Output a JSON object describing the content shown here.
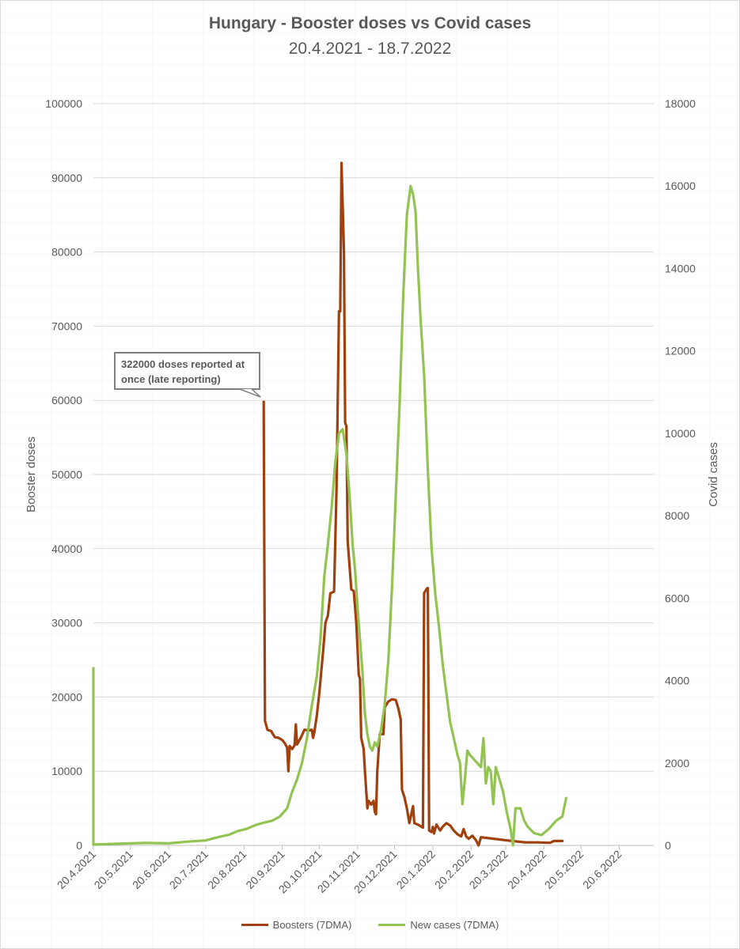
{
  "chart_data": {
    "type": "line",
    "title": "Hungary - Booster doses vs Covid cases",
    "subtitle": "20.4.2021 - 18.7.2022",
    "y_left_label": "Booster doses",
    "y_right_label": "Covid cases",
    "y_left_range": [
      0,
      100000
    ],
    "y_right_range": [
      0,
      18000
    ],
    "y_left_ticks": [
      "0",
      "10000",
      "20000",
      "30000",
      "40000",
      "50000",
      "60000",
      "70000",
      "80000",
      "90000",
      "100000"
    ],
    "y_right_ticks": [
      "0",
      "2000",
      "4000",
      "6000",
      "8000",
      "10000",
      "12000",
      "14000",
      "16000",
      "18000"
    ],
    "x_range": [
      "20.4.2021",
      "18.7.2022"
    ],
    "x_ticks": [
      "20.4.2021",
      "20.5.2021",
      "20.6.2021",
      "20.7.2021",
      "20.8.2021",
      "20.9.2021",
      "20.10.2021",
      "20.11.2021",
      "20.12.2021",
      "20.1.2022",
      "20.2.2022",
      "20.3.2022",
      "20.4.2022",
      "20.5.2022",
      "20.6.2022"
    ],
    "x_tick_dates": [
      "2021-04-20",
      "2021-05-20",
      "2021-06-20",
      "2021-07-20",
      "2021-08-20",
      "2021-09-20",
      "2021-10-20",
      "2021-11-20",
      "2021-12-20",
      "2022-01-20",
      "2022-02-20",
      "2022-03-20",
      "2022-04-20",
      "2022-05-20",
      "2022-06-20"
    ],
    "gridlines": true,
    "legend_position": "bottom",
    "annotation": {
      "text_line1": "322000 doses reported at",
      "text_line2": "once (late reporting)",
      "date": "2021-09-05",
      "value": 59800
    },
    "series": [
      {
        "name": "Boosters (7DMA)",
        "axis": "left",
        "color": "#a0410d",
        "points": [
          [
            "2021-09-05",
            59800
          ],
          [
            "2021-09-06",
            16800
          ],
          [
            "2021-09-08",
            15600
          ],
          [
            "2021-09-11",
            15400
          ],
          [
            "2021-09-14",
            14600
          ],
          [
            "2021-09-17",
            14500
          ],
          [
            "2021-09-20",
            14200
          ],
          [
            "2021-09-22",
            13800
          ],
          [
            "2021-09-24",
            13200
          ],
          [
            "2021-09-25",
            10000
          ],
          [
            "2021-09-26",
            13400
          ],
          [
            "2021-09-28",
            13000
          ],
          [
            "2021-09-30",
            13500
          ],
          [
            "2021-10-01",
            16300
          ],
          [
            "2021-10-02",
            13600
          ],
          [
            "2021-10-05",
            14500
          ],
          [
            "2021-10-08",
            15600
          ],
          [
            "2021-10-11",
            15500
          ],
          [
            "2021-10-14",
            15600
          ],
          [
            "2021-10-15",
            14500
          ],
          [
            "2021-10-16",
            15200
          ],
          [
            "2021-10-18",
            17500
          ],
          [
            "2021-10-20",
            20500
          ],
          [
            "2021-10-23",
            26000
          ],
          [
            "2021-10-25",
            30000
          ],
          [
            "2021-10-27",
            31000
          ],
          [
            "2021-10-29",
            34000
          ],
          [
            "2021-11-01",
            34200
          ],
          [
            "2021-11-03",
            48000
          ],
          [
            "2021-11-05",
            72000
          ],
          [
            "2021-11-06",
            72000
          ],
          [
            "2021-11-07",
            92000
          ],
          [
            "2021-11-09",
            80000
          ],
          [
            "2021-11-10",
            57000
          ],
          [
            "2021-11-11",
            56500
          ],
          [
            "2021-11-12",
            41000
          ],
          [
            "2021-11-15",
            34500
          ],
          [
            "2021-11-17",
            34300
          ],
          [
            "2021-11-19",
            30000
          ],
          [
            "2021-11-21",
            23000
          ],
          [
            "2021-11-22",
            22500
          ],
          [
            "2021-11-23",
            14500
          ],
          [
            "2021-11-25",
            13000
          ],
          [
            "2021-11-26",
            10000
          ],
          [
            "2021-11-28",
            5000
          ],
          [
            "2021-11-29",
            6000
          ],
          [
            "2021-12-01",
            5500
          ],
          [
            "2021-12-03",
            6000
          ],
          [
            "2021-12-04",
            4500
          ],
          [
            "2021-12-05",
            4200
          ],
          [
            "2021-12-06",
            10000
          ],
          [
            "2021-12-08",
            15000
          ],
          [
            "2021-12-11",
            15000
          ],
          [
            "2021-12-12",
            18600
          ],
          [
            "2021-12-15",
            19400
          ],
          [
            "2021-12-18",
            19700
          ],
          [
            "2021-12-21",
            19600
          ],
          [
            "2021-12-23",
            18500
          ],
          [
            "2021-12-25",
            17000
          ],
          [
            "2021-12-26",
            7500
          ],
          [
            "2021-12-28",
            6500
          ],
          [
            "2021-12-30",
            5000
          ],
          [
            "2022-01-01",
            3000
          ],
          [
            "2022-01-03",
            4500
          ],
          [
            "2022-01-04",
            5300
          ],
          [
            "2022-01-05",
            3000
          ],
          [
            "2022-01-08",
            2800
          ],
          [
            "2022-01-10",
            2600
          ],
          [
            "2022-01-12",
            2400
          ],
          [
            "2022-01-13",
            34000
          ],
          [
            "2022-01-15",
            34600
          ],
          [
            "2022-01-16",
            34700
          ],
          [
            "2022-01-17",
            2000
          ],
          [
            "2022-01-19",
            1800
          ],
          [
            "2022-01-20",
            2500
          ],
          [
            "2022-01-21",
            1600
          ],
          [
            "2022-01-23",
            2800
          ],
          [
            "2022-01-26",
            2000
          ],
          [
            "2022-01-28",
            2500
          ],
          [
            "2022-01-31",
            3000
          ],
          [
            "2022-02-03",
            2700
          ],
          [
            "2022-02-06",
            2000
          ],
          [
            "2022-02-09",
            1500
          ],
          [
            "2022-02-12",
            1200
          ],
          [
            "2022-02-14",
            2200
          ],
          [
            "2022-02-16",
            1200
          ],
          [
            "2022-02-18",
            900
          ],
          [
            "2022-02-21",
            1300
          ],
          [
            "2022-02-24",
            700
          ],
          [
            "2022-02-26",
            0
          ],
          [
            "2022-02-28",
            1100
          ],
          [
            "2022-03-05",
            1000
          ],
          [
            "2022-03-15",
            800
          ],
          [
            "2022-03-25",
            600
          ],
          [
            "2022-04-05",
            400
          ],
          [
            "2022-04-15",
            400
          ],
          [
            "2022-04-25",
            350
          ],
          [
            "2022-04-28",
            600
          ],
          [
            "2022-05-05",
            600
          ]
        ]
      },
      {
        "name": "New cases (7DMA)",
        "axis": "right",
        "color": "#92c353",
        "points": [
          [
            "2021-01-15",
            4300
          ],
          [
            "2021-01-17",
            3800
          ],
          [
            "2021-01-20",
            3200
          ],
          [
            "2021-01-24",
            2700
          ],
          [
            "2021-01-28",
            2100
          ],
          [
            "2021-02-02",
            1600
          ],
          [
            "2021-02-08",
            1100
          ],
          [
            "2021-02-14",
            850
          ],
          [
            "2021-02-20",
            500
          ],
          [
            "2021-02-26",
            300
          ],
          [
            "2021-03-05",
            250
          ],
          [
            "2021-03-12",
            120
          ],
          [
            "2021-03-20",
            80
          ],
          [
            "2021-04-01",
            40
          ],
          [
            "2021-04-20",
            20
          ],
          [
            "2021-05-10",
            40
          ],
          [
            "2021-06-01",
            60
          ],
          [
            "2021-06-20",
            50
          ],
          [
            "2021-07-05",
            90
          ],
          [
            "2021-07-20",
            120
          ],
          [
            "2021-07-30",
            200
          ],
          [
            "2021-08-08",
            260
          ],
          [
            "2021-08-15",
            350
          ],
          [
            "2021-08-22",
            400
          ],
          [
            "2021-08-30",
            500
          ],
          [
            "2021-09-05",
            550
          ],
          [
            "2021-09-12",
            600
          ],
          [
            "2021-09-18",
            700
          ],
          [
            "2021-09-24",
            900
          ],
          [
            "2021-09-28",
            1300
          ],
          [
            "2021-10-02",
            1600
          ],
          [
            "2021-10-06",
            2000
          ],
          [
            "2021-10-10",
            2600
          ],
          [
            "2021-10-14",
            3400
          ],
          [
            "2021-10-18",
            4100
          ],
          [
            "2021-10-21",
            5000
          ],
          [
            "2021-10-24",
            6500
          ],
          [
            "2021-10-27",
            7300
          ],
          [
            "2021-10-30",
            8200
          ],
          [
            "2021-11-02",
            9300
          ],
          [
            "2021-11-05",
            10000
          ],
          [
            "2021-11-08",
            10100
          ],
          [
            "2021-11-11",
            9500
          ],
          [
            "2021-11-14",
            8300
          ],
          [
            "2021-11-16",
            7300
          ],
          [
            "2021-11-18",
            6700
          ],
          [
            "2021-11-20",
            5800
          ],
          [
            "2021-11-22",
            5000
          ],
          [
            "2021-11-24",
            4200
          ],
          [
            "2021-11-26",
            3200
          ],
          [
            "2021-11-28",
            2700
          ],
          [
            "2021-11-30",
            2400
          ],
          [
            "2021-12-02",
            2300
          ],
          [
            "2021-12-04",
            2500
          ],
          [
            "2021-12-06",
            2400
          ],
          [
            "2021-12-09",
            2800
          ],
          [
            "2021-12-12",
            3400
          ],
          [
            "2021-12-15",
            4500
          ],
          [
            "2021-12-18",
            6300
          ],
          [
            "2021-12-21",
            8500
          ],
          [
            "2021-12-24",
            10600
          ],
          [
            "2021-12-27",
            13300
          ],
          [
            "2021-12-30",
            15300
          ],
          [
            "2022-01-02",
            16000
          ],
          [
            "2022-01-04",
            15800
          ],
          [
            "2022-01-06",
            15400
          ],
          [
            "2022-01-08",
            14000
          ],
          [
            "2022-01-10",
            12800
          ],
          [
            "2022-01-13",
            11400
          ],
          [
            "2022-01-16",
            9100
          ],
          [
            "2022-01-19",
            7200
          ],
          [
            "2022-01-22",
            6100
          ],
          [
            "2022-01-25",
            5300
          ],
          [
            "2022-01-28",
            4400
          ],
          [
            "2022-01-31",
            3700
          ],
          [
            "2022-02-03",
            3000
          ],
          [
            "2022-02-06",
            2600
          ],
          [
            "2022-02-09",
            2200
          ],
          [
            "2022-02-11",
            2000
          ],
          [
            "2022-02-13",
            1000
          ],
          [
            "2022-02-15",
            1600
          ],
          [
            "2022-02-17",
            2300
          ],
          [
            "2022-02-19",
            2200
          ],
          [
            "2022-02-22",
            2100
          ],
          [
            "2022-02-25",
            2000
          ],
          [
            "2022-02-28",
            1900
          ],
          [
            "2022-03-02",
            2600
          ],
          [
            "2022-03-04",
            1500
          ],
          [
            "2022-03-06",
            1900
          ],
          [
            "2022-03-08",
            1800
          ],
          [
            "2022-03-10",
            1000
          ],
          [
            "2022-03-12",
            1900
          ],
          [
            "2022-03-15",
            1600
          ],
          [
            "2022-03-18",
            1300
          ],
          [
            "2022-03-21",
            800
          ],
          [
            "2022-03-24",
            400
          ],
          [
            "2022-03-26",
            0
          ],
          [
            "2022-03-28",
            900
          ],
          [
            "2022-04-01",
            900
          ],
          [
            "2022-04-04",
            600
          ],
          [
            "2022-04-07",
            450
          ],
          [
            "2022-04-12",
            300
          ],
          [
            "2022-04-18",
            250
          ],
          [
            "2022-04-24",
            400
          ],
          [
            "2022-04-30",
            600
          ],
          [
            "2022-05-05",
            700
          ],
          [
            "2022-05-08",
            1150
          ]
        ]
      }
    ]
  }
}
